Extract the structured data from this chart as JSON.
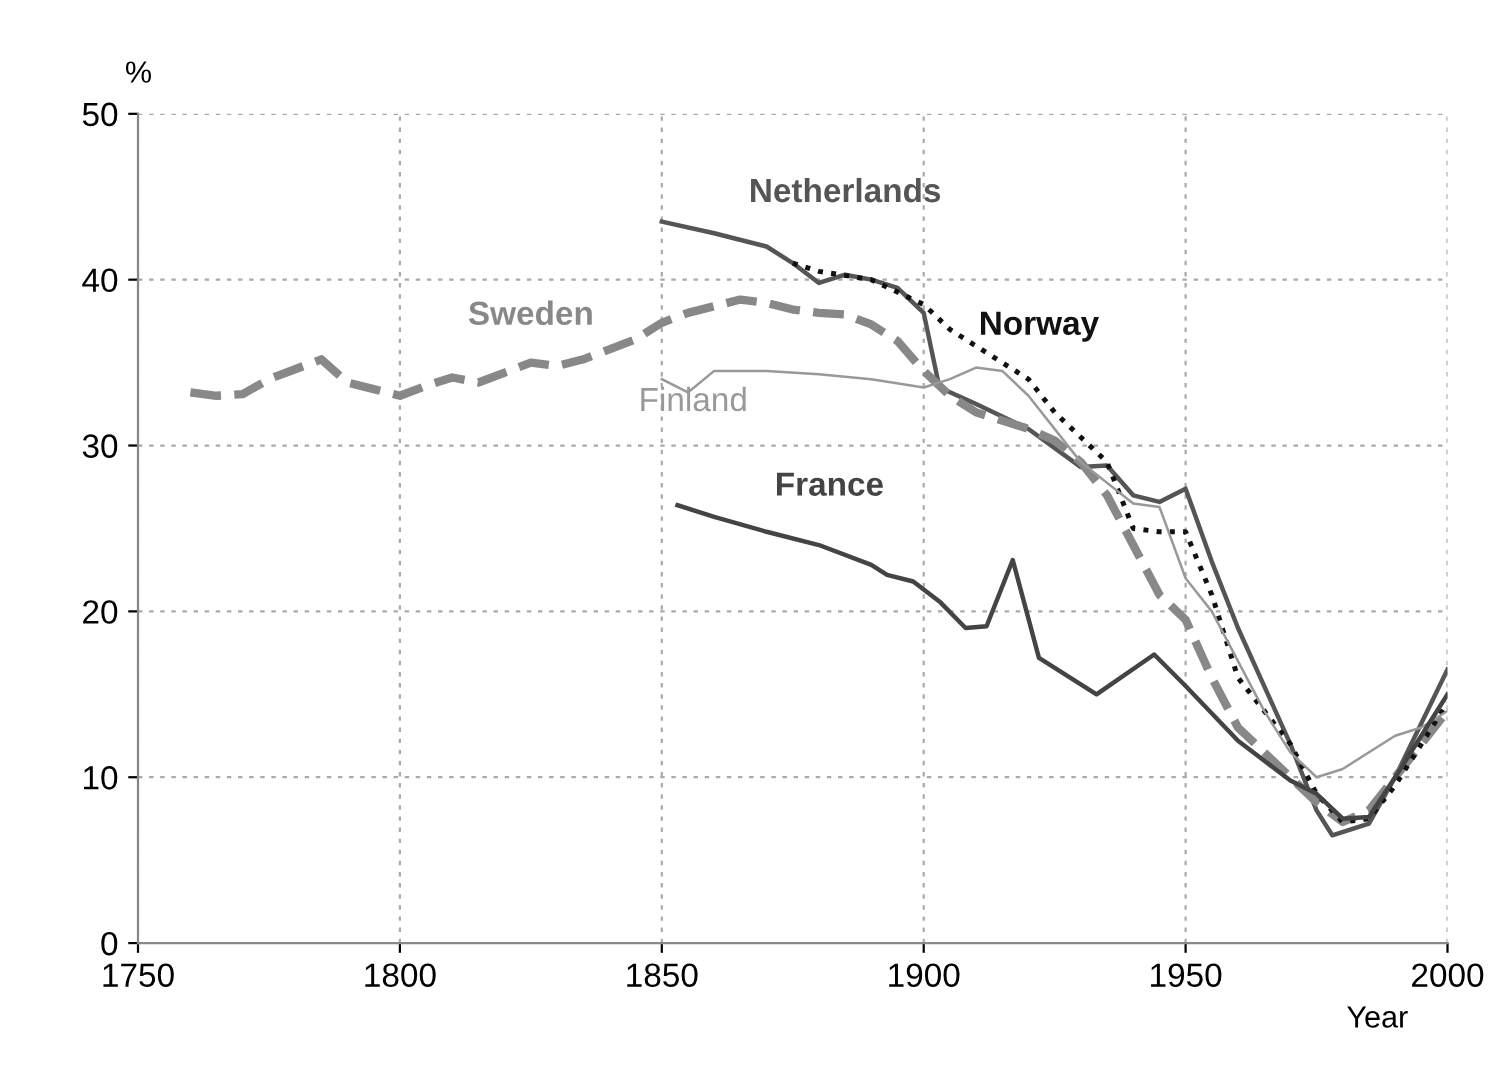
{
  "chart_data": {
    "type": "line",
    "xlabel": "Year",
    "ylabel": "%",
    "xlim": [
      1750,
      2000
    ],
    "ylim": [
      0,
      50
    ],
    "xticks": [
      1750,
      1800,
      1850,
      1900,
      1950,
      2000
    ],
    "yticks": [
      0,
      10,
      20,
      30,
      40,
      50
    ],
    "grid": true,
    "legend": false,
    "series": [
      {
        "name": "Netherlands",
        "color": "#555555",
        "line_style": "solid",
        "x": [
          1850,
          1860,
          1870,
          1875,
          1880,
          1885,
          1890,
          1895,
          1900,
          1903,
          1910,
          1920,
          1930,
          1935,
          1940,
          1945,
          1950,
          1955,
          1960,
          1970,
          1975,
          1978,
          1985,
          1990,
          2000
        ],
        "values": [
          43.5,
          42.8,
          42,
          41,
          39.8,
          40.3,
          40,
          39.5,
          38,
          33.5,
          32.5,
          31,
          28.7,
          28.8,
          27,
          26.6,
          27.4,
          23,
          19,
          12,
          8,
          6.5,
          7.2,
          10,
          16.5
        ]
      },
      {
        "name": "Sweden",
        "color": "#888888",
        "line_style": "dashed",
        "x": [
          1760,
          1765,
          1770,
          1775,
          1780,
          1785,
          1790,
          1795,
          1800,
          1805,
          1810,
          1815,
          1820,
          1825,
          1830,
          1835,
          1840,
          1845,
          1850,
          1855,
          1860,
          1865,
          1870,
          1875,
          1880,
          1885,
          1890,
          1895,
          1900,
          1905,
          1910,
          1915,
          1920,
          1925,
          1930,
          1935,
          1940,
          1945,
          1950,
          1955,
          1960,
          1965,
          1970,
          1975,
          1980,
          1985,
          1990,
          1995,
          2000
        ],
        "values": [
          33.2,
          33,
          33.1,
          34,
          34.6,
          35.2,
          33.8,
          33.4,
          33,
          33.6,
          34.1,
          33.8,
          34.4,
          35,
          34.8,
          35.2,
          35.8,
          36.4,
          37.4,
          38,
          38.4,
          38.8,
          38.6,
          38.2,
          38,
          37.9,
          37.3,
          36.3,
          34.5,
          33,
          32,
          31.5,
          31,
          30.3,
          29,
          27,
          24,
          21,
          19.5,
          16,
          13,
          11.5,
          10,
          8.5,
          7.3,
          8,
          10,
          12,
          14
        ]
      },
      {
        "name": "Norway",
        "color": "#111111",
        "line_style": "dotted",
        "x": [
          1875,
          1880,
          1890,
          1900,
          1905,
          1910,
          1915,
          1920,
          1925,
          1930,
          1935,
          1940,
          1945,
          1950,
          1955,
          1960,
          1965,
          1970,
          1975,
          1980,
          1985,
          1990,
          1995,
          2000
        ],
        "values": [
          41,
          40.5,
          40,
          38.5,
          37,
          36,
          35,
          34,
          32,
          30.5,
          29,
          25,
          24.8,
          24.8,
          21,
          16,
          14,
          12,
          9,
          7.3,
          7.5,
          9.5,
          12,
          14.5
        ]
      },
      {
        "name": "Finland",
        "color": "#999999",
        "line_style": "solid",
        "x": [
          1850,
          1855,
          1860,
          1870,
          1880,
          1890,
          1900,
          1905,
          1910,
          1915,
          1920,
          1930,
          1940,
          1945,
          1950,
          1955,
          1960,
          1965,
          1970,
          1975,
          1980,
          1990,
          1995,
          2000
        ],
        "values": [
          34,
          33.2,
          34.5,
          34.5,
          34.3,
          34,
          33.5,
          34,
          34.7,
          34.5,
          33,
          29,
          26.5,
          26.3,
          22,
          20,
          17,
          14,
          11.5,
          10,
          10.5,
          12.5,
          13,
          14
        ]
      },
      {
        "name": "France",
        "color": "#444444",
        "line_style": "solid",
        "x": [
          1853,
          1860,
          1870,
          1880,
          1890,
          1893,
          1898,
          1903,
          1908,
          1912,
          1917,
          1922,
          1933,
          1944,
          1950,
          1960,
          1970,
          1975,
          1980,
          1985,
          1990,
          2000
        ],
        "values": [
          26.4,
          25.7,
          24.8,
          24,
          22.8,
          22.2,
          21.8,
          20.6,
          19,
          19.1,
          23.1,
          17.2,
          15,
          17.4,
          15.5,
          12.2,
          9.8,
          9,
          7.5,
          7.6,
          10,
          15
        ]
      }
    ]
  }
}
